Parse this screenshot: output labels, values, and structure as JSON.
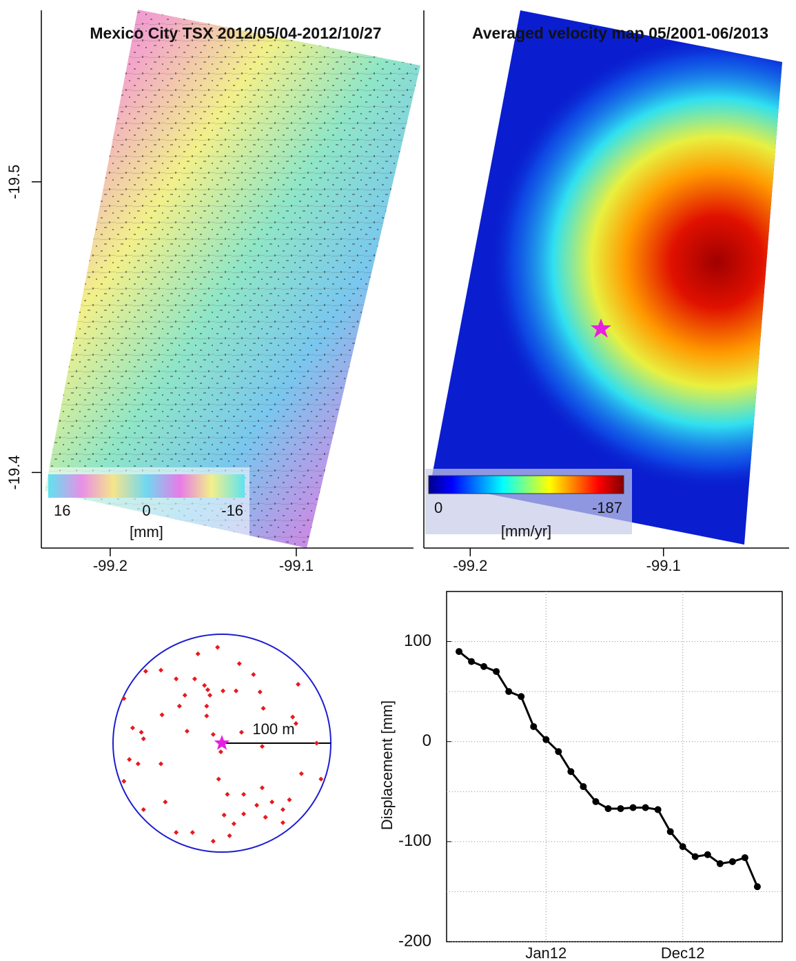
{
  "chart_data": [
    {
      "type": "map",
      "title": "Mexico City  TSX 2012/05/04-2012/10/27",
      "xlim": [
        -99.237,
        -99.037
      ],
      "xticks": [
        -99.2,
        -99.1
      ],
      "ylim": [
        -19.374,
        -19.559
      ],
      "yticks": [
        -19.5,
        -19.4
      ],
      "colorbar": {
        "ticks": [
          16,
          0,
          -16
        ],
        "range": [
          16,
          -16
        ],
        "label": "[mm]"
      }
    },
    {
      "type": "map",
      "title": "Averaged velocity map 05/2001-06/2013",
      "xlim": [
        -99.224,
        -99.035
      ],
      "xticks": [
        -99.2,
        -99.1
      ],
      "colorbar": {
        "ticks": [
          0,
          -187
        ],
        "range": [
          0,
          -187
        ],
        "label": "[mm/yr]"
      }
    },
    {
      "type": "scatter",
      "color": "#e8191e",
      "circle_color": "#1c1cd0",
      "radius": 100,
      "scale_label": "100 m",
      "x": [
        -4,
        -22,
        -70,
        -56,
        16,
        29,
        -42,
        -25,
        -16,
        -13,
        1,
        13,
        35,
        -34,
        -11,
        70,
        -90,
        -39,
        -14,
        38,
        -14,
        -55,
        -82,
        -74,
        -72,
        -32,
        18,
        65,
        68,
        -8,
        87,
        37,
        -1,
        -85,
        -77,
        -56,
        -3,
        73,
        91,
        -90,
        37,
        20,
        5,
        62,
        46,
        32,
        -52,
        56,
        20,
        -72,
        2,
        40,
        56,
        -42,
        -27,
        7,
        -8,
        11
      ],
      "y": [
        88,
        82,
        66,
        67,
        73,
        63,
        59,
        59,
        53,
        49,
        48,
        48,
        47,
        44,
        44,
        54,
        41,
        34,
        34,
        32,
        25,
        26,
        14,
        10,
        4,
        11,
        10,
        24,
        18,
        8,
        0,
        -3,
        -8,
        -15,
        -19,
        -19,
        -33,
        -28,
        -33,
        -35,
        -41,
        -47,
        -47,
        -52,
        -54,
        -57,
        -54,
        -61,
        -65,
        -61,
        -66,
        -68,
        -73,
        -82,
        -82,
        -85,
        -90,
        -74
      ]
    },
    {
      "type": "line",
      "y_label": "Displacement [mm]",
      "x": [
        "2011-06",
        "2011-07",
        "2011-08",
        "2011-09",
        "2011-10",
        "2011-11",
        "2011-12",
        "2012-01",
        "2012-02",
        "2012-03",
        "2012-04",
        "2012-05",
        "2012-06",
        "2012-07",
        "2012-08",
        "2012-09",
        "2012-10",
        "2012-11",
        "2012-12",
        "2013-01",
        "2013-02",
        "2013-03",
        "2013-04",
        "2013-05",
        "2013-06"
      ],
      "series": [
        {
          "color": "#000000",
          "values": [
            90,
            80,
            75,
            70,
            50,
            45,
            15,
            2,
            -10,
            -30,
            -45,
            -60,
            -67,
            -67,
            -66,
            -66,
            -68,
            -90,
            -105,
            -115,
            -113,
            -122,
            -120,
            -116,
            -145
          ]
        }
      ],
      "xlim": [
        "2011-05",
        "2013-08"
      ],
      "xticks": [
        {
          "value": "2012-01",
          "label": "Jan12"
        },
        {
          "value": "2012-12",
          "label": "Dec12"
        }
      ],
      "ylim": [
        -200,
        150
      ],
      "yticks": [
        100,
        0,
        -100,
        -200
      ],
      "minor_yticks": [
        50,
        -50,
        -150
      ],
      "grid": true
    }
  ]
}
